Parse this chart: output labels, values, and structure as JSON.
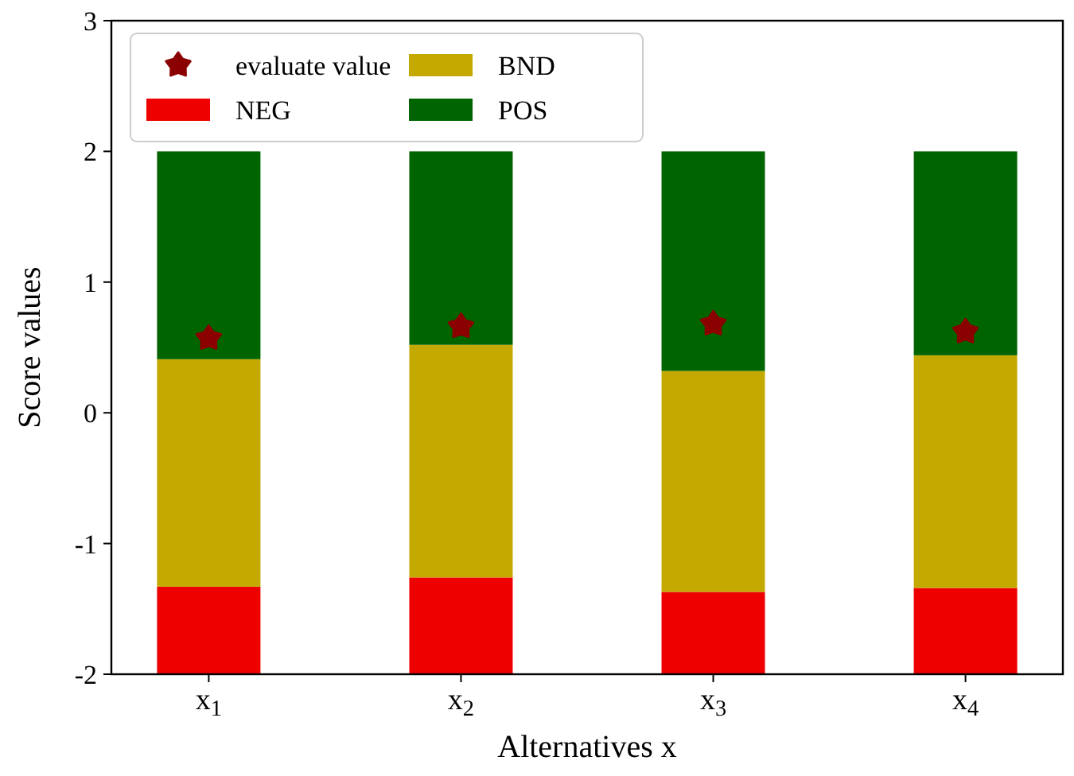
{
  "chart_data": {
    "type": "bar",
    "xlabel": "Alternatives x",
    "ylabel": "Score values",
    "categories": [
      "x$_{1}$",
      "x$_{2}$",
      "x$_{3}$",
      "x$_{4}$"
    ],
    "series": [
      {
        "name": "evaluate value",
        "type": "scatter",
        "marker": "star",
        "color": "#8b0000",
        "x": [
          "x$_{1}$",
          "x$_{2}$",
          "x$_{3}$",
          "x$_{4}$"
        ],
        "values": [
          0.57,
          0.66,
          0.68,
          0.62
        ]
      },
      {
        "name": "NEG",
        "color": "#ee0000",
        "base": [
          -2,
          -2,
          -2,
          -2
        ],
        "values": [
          0.67,
          0.74,
          0.63,
          0.66
        ]
      },
      {
        "name": "BND",
        "color": "#c4aa00",
        "base": [
          -1.33,
          -1.26,
          -1.37,
          -1.34
        ],
        "values": [
          1.74,
          1.78,
          1.69,
          1.78
        ]
      },
      {
        "name": "POS",
        "color": "#006400",
        "base": [
          0.41,
          0.52,
          0.32,
          0.44
        ],
        "values": [
          1.59,
          1.48,
          1.68,
          1.56
        ]
      }
    ],
    "ylim": [
      -2,
      3
    ],
    "yticks": [
      -2,
      -1,
      0,
      1,
      2,
      3
    ],
    "grid": false,
    "legend": "top left"
  }
}
